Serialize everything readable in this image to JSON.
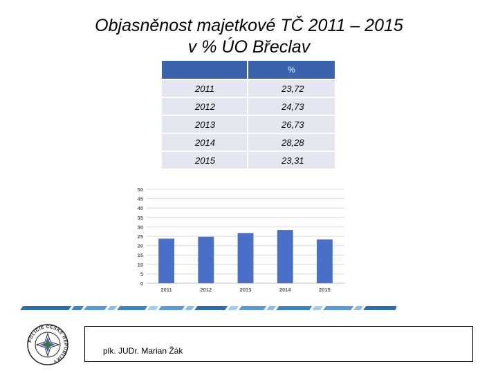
{
  "title": {
    "line1": "Objasněnost majetkové TČ 2011 – 2015",
    "line2": "v % ÚO Břeclav"
  },
  "table": {
    "headers": [
      "",
      "%"
    ],
    "rows": [
      {
        "year": "2011",
        "value": "23,72"
      },
      {
        "year": "2012",
        "value": "24,73"
      },
      {
        "year": "2013",
        "value": "26,73"
      },
      {
        "year": "2014",
        "value": "28,28"
      },
      {
        "year": "2015",
        "value": "23,31"
      }
    ]
  },
  "chart_data": {
    "type": "bar",
    "categories": [
      "2011",
      "2012",
      "2013",
      "2014",
      "2015"
    ],
    "values": [
      23.72,
      24.73,
      26.73,
      28.28,
      23.31
    ],
    "ylim": [
      0,
      50
    ],
    "yticks": [
      0,
      5,
      10,
      15,
      20,
      25,
      30,
      35,
      40,
      45,
      50
    ],
    "grid": true,
    "bar_color": "#4a6fc7"
  },
  "logo": {
    "text": "POLICIE ČESKÉ REPUBLIKY"
  },
  "footer": {
    "author": "plk. JUDr. Marian Žák"
  },
  "colors": {
    "header_blue": "#3b62ad",
    "row_gray": "#e4e7ef"
  }
}
